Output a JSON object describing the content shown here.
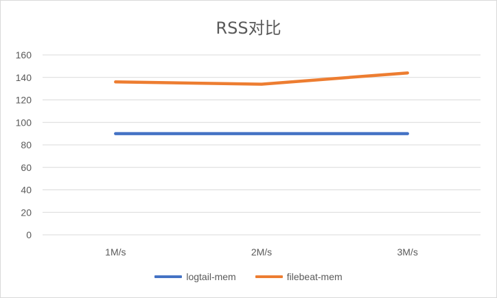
{
  "chart_data": {
    "type": "line",
    "title": "RSS对比",
    "xlabel": "",
    "ylabel": "",
    "categories": [
      "1M/s",
      "2M/s",
      "3M/s"
    ],
    "ylim": [
      0,
      160
    ],
    "yticks": [
      0,
      20,
      40,
      60,
      80,
      100,
      120,
      140,
      160
    ],
    "grid": true,
    "legend_position": "bottom",
    "series": [
      {
        "name": "logtail-mem",
        "values": [
          90,
          90,
          90
        ],
        "color": "#4472c4"
      },
      {
        "name": "filebeat-mem",
        "values": [
          136,
          134,
          144
        ],
        "color": "#ed7d31"
      }
    ]
  }
}
